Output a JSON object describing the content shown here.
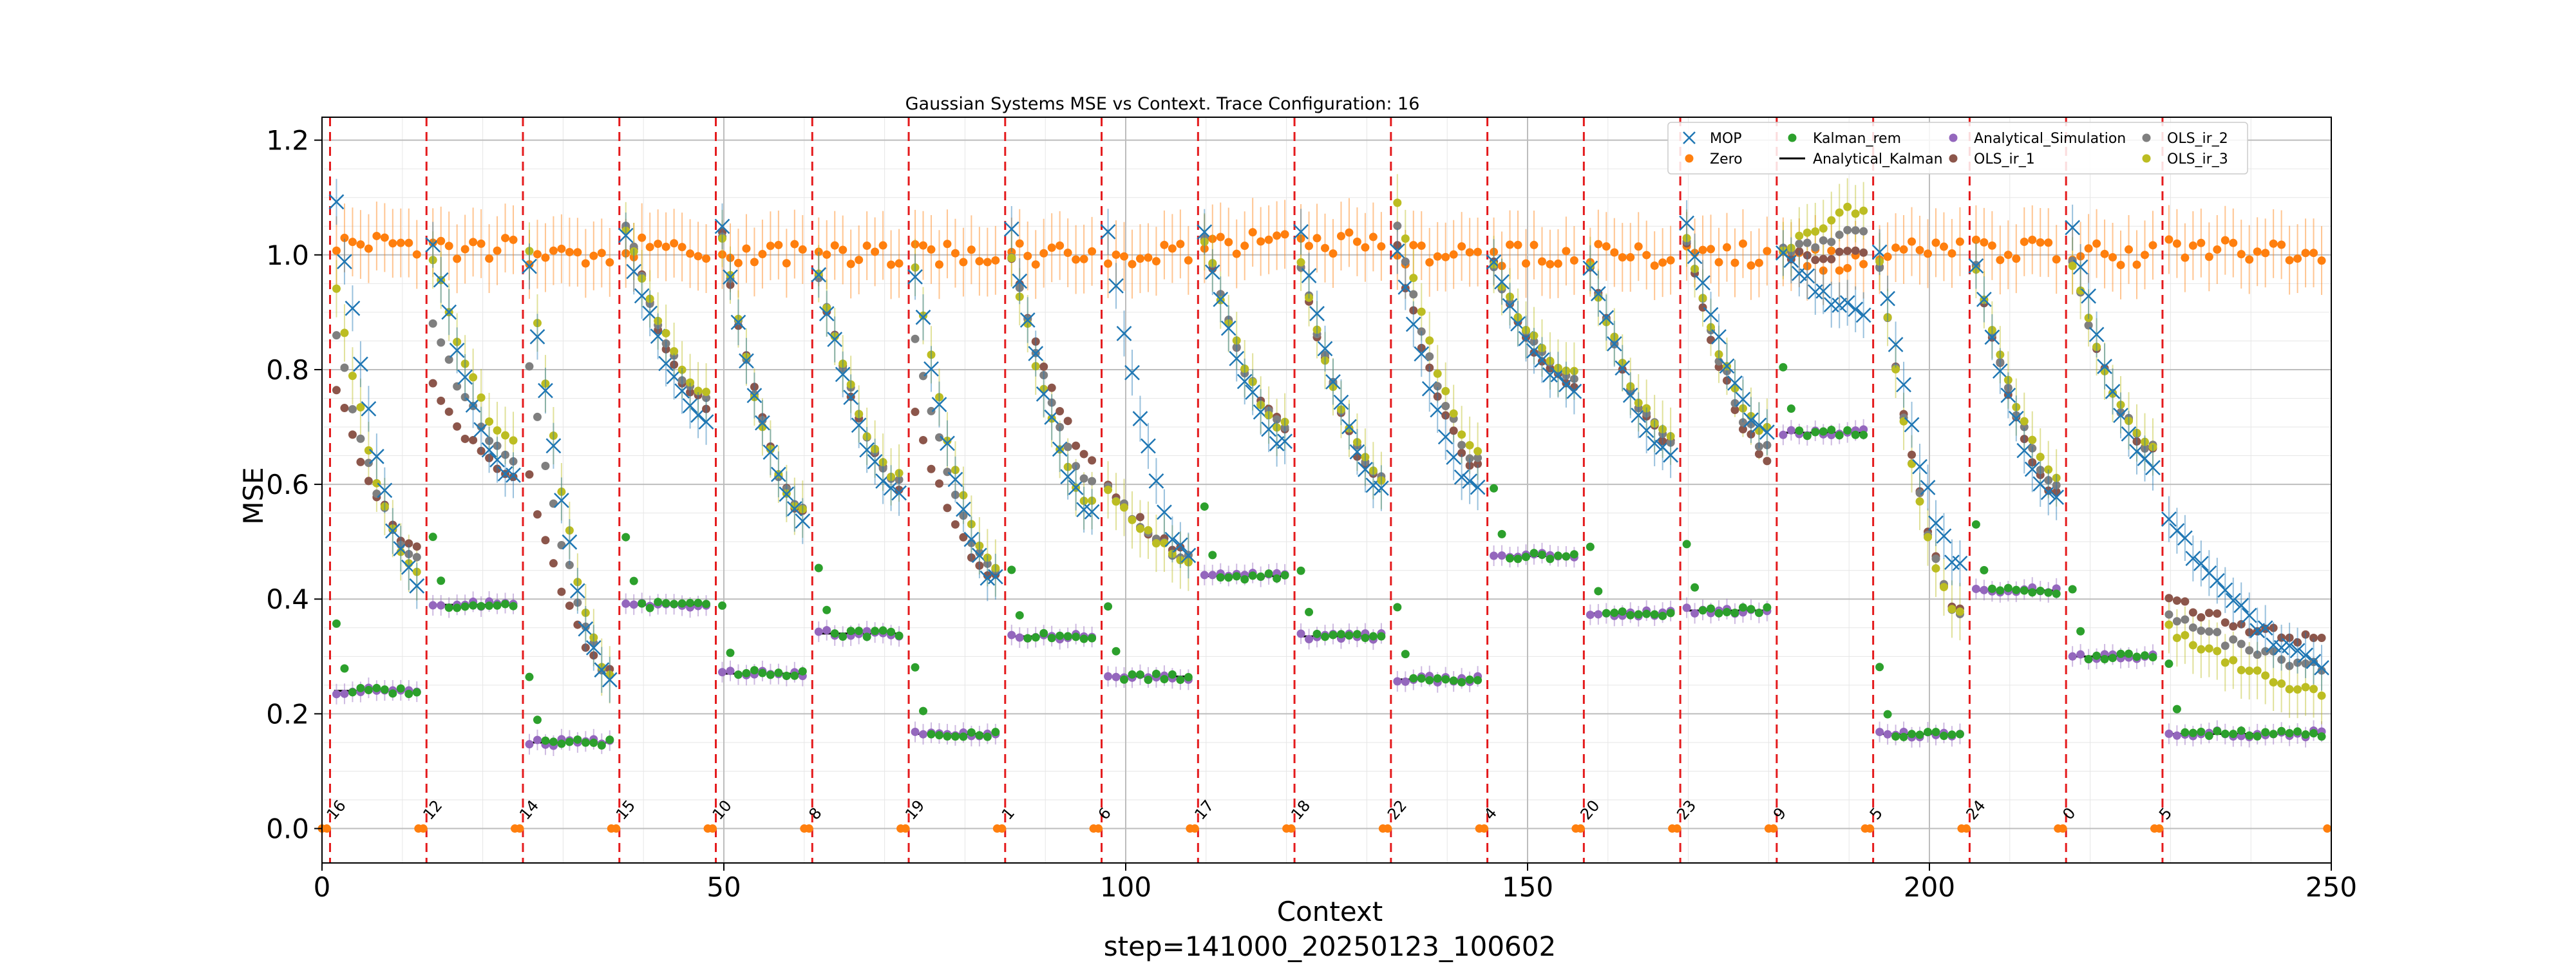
{
  "chart_data": {
    "type": "scatter",
    "title": "Gaussian Systems MSE vs Context. Trace Configuration: 16",
    "xlabel": "Context",
    "ylabel": "MSE",
    "footer": "step=141000_20250123_100602",
    "xlim": [
      0,
      250
    ],
    "ylim": [
      -0.06,
      1.24
    ],
    "xticks": [
      0,
      50,
      100,
      150,
      200,
      250
    ],
    "yticks": [
      0.0,
      0.2,
      0.4,
      0.6,
      0.8,
      1.0,
      1.2
    ],
    "grid": true,
    "legend_position": "top-right",
    "legend": [
      {
        "name": "MOP",
        "marker": "x",
        "color": "#1f77b4"
      },
      {
        "name": "Zero",
        "marker": "dot",
        "color": "#ff7f0e"
      },
      {
        "name": "Kalman_rem",
        "marker": "dot",
        "color": "#2ca02c"
      },
      {
        "name": "Analytical_Kalman",
        "marker": "line",
        "color": "#000000"
      },
      {
        "name": "Analytical_Simulation",
        "marker": "dot",
        "color": "#9467bd"
      },
      {
        "name": "OLS_ir_1",
        "marker": "dot",
        "color": "#8c564b"
      },
      {
        "name": "OLS_ir_2",
        "marker": "dot",
        "color": "#7f7f7f"
      },
      {
        "name": "OLS_ir_3",
        "marker": "dot",
        "color": "#bcbd22"
      }
    ],
    "segment_boundaries": [
      1,
      13,
      25,
      37,
      49,
      61,
      73,
      85,
      97,
      109,
      121,
      133,
      145,
      157,
      169,
      181,
      193,
      205,
      217,
      229
    ],
    "segments": [
      {
        "label": "16",
        "start": 1,
        "len": 11,
        "kalman": 0.24,
        "mop_start": 1.1,
        "mop_end": 0.43,
        "ols1_start": 0.77,
        "ols1_end": 0.49,
        "ols3_start": 0.95,
        "ols3_end": 0.44,
        "zero": 1.02
      },
      {
        "label": "12",
        "start": 13,
        "len": 11,
        "kalman": 0.39,
        "mop_start": 1.02,
        "mop_end": 0.61,
        "ols1_start": 0.77,
        "ols1_end": 0.62,
        "ols3_start": 1.0,
        "ols3_end": 0.67,
        "zero": 1.01
      },
      {
        "label": "14",
        "start": 25,
        "len": 11,
        "kalman": 0.15,
        "mop_start": 0.98,
        "mop_end": 0.25,
        "ols1_start": 0.61,
        "ols1_end": 0.27,
        "ols3_start": 1.0,
        "ols3_end": 0.27,
        "zero": 1.0
      },
      {
        "label": "15",
        "start": 37,
        "len": 11,
        "kalman": 0.39,
        "mop_start": 1.03,
        "mop_end": 0.71,
        "ols1_start": 1.05,
        "ols1_end": 0.74,
        "ols3_start": 1.05,
        "ols3_end": 0.76,
        "zero": 1.01
      },
      {
        "label": "10",
        "start": 49,
        "len": 11,
        "kalman": 0.27,
        "mop_start": 1.04,
        "mop_end": 0.54,
        "ols1_start": 1.03,
        "ols1_end": 0.55,
        "ols3_start": 1.03,
        "ols3_end": 0.55,
        "zero": 1.0
      },
      {
        "label": "8",
        "start": 61,
        "len": 11,
        "kalman": 0.34,
        "mop_start": 0.96,
        "mop_end": 0.58,
        "ols1_start": 0.96,
        "ols1_end": 0.6,
        "ols3_start": 0.96,
        "ols3_end": 0.61,
        "zero": 1.0
      },
      {
        "label": "19",
        "start": 73,
        "len": 11,
        "kalman": 0.165,
        "mop_start": 0.97,
        "mop_end": 0.43,
        "ols1_start": 0.72,
        "ols1_end": 0.44,
        "ols3_start": 0.98,
        "ols3_end": 0.45,
        "zero": 1.0
      },
      {
        "label": "1",
        "start": 85,
        "len": 11,
        "kalman": 0.335,
        "mop_start": 1.04,
        "mop_end": 0.55,
        "ols1_start": 1.0,
        "ols1_end": 0.65,
        "ols3_start": 1.0,
        "ols3_end": 0.57,
        "zero": 1.0
      },
      {
        "label": "6",
        "start": 97,
        "len": 11,
        "kalman": 0.265,
        "mop_start": 1.04,
        "mop_end": 0.47,
        "ols1_start": 0.6,
        "ols1_end": 0.48,
        "ols3_start": 0.6,
        "ols3_end": 0.47,
        "zero": 1.0
      },
      {
        "label": "17",
        "start": 109,
        "len": 11,
        "kalman": 0.44,
        "mop_start": 1.03,
        "mop_end": 0.67,
        "ols1_start": 1.03,
        "ols1_end": 0.7,
        "ols3_start": 1.03,
        "ols3_end": 0.7,
        "zero": 1.02
      },
      {
        "label": "18",
        "start": 121,
        "len": 11,
        "kalman": 0.335,
        "mop_start": 1.04,
        "mop_end": 0.59,
        "ols1_start": 0.98,
        "ols1_end": 0.6,
        "ols3_start": 0.98,
        "ols3_end": 0.61,
        "zero": 1.02
      },
      {
        "label": "22",
        "start": 133,
        "len": 11,
        "kalman": 0.26,
        "mop_start": 1.01,
        "mop_end": 0.59,
        "ols1_start": 1.01,
        "ols1_end": 0.63,
        "ols3_start": 1.09,
        "ols3_end": 0.66,
        "zero": 1.0
      },
      {
        "label": "4",
        "start": 145,
        "len": 11,
        "kalman": 0.475,
        "mop_start": 0.98,
        "mop_end": 0.77,
        "ols1_start": 0.98,
        "ols1_end": 0.77,
        "ols3_start": 0.98,
        "ols3_end": 0.79,
        "zero": 1.0
      },
      {
        "label": "20",
        "start": 157,
        "len": 11,
        "kalman": 0.375,
        "mop_start": 0.98,
        "mop_end": 0.65,
        "ols1_start": 0.98,
        "ols1_end": 0.67,
        "ols3_start": 0.98,
        "ols3_end": 0.68,
        "zero": 1.0
      },
      {
        "label": "23",
        "start": 169,
        "len": 11,
        "kalman": 0.38,
        "mop_start": 1.05,
        "mop_end": 0.69,
        "ols1_start": 1.02,
        "ols1_end": 0.65,
        "ols3_start": 1.02,
        "ols3_end": 0.69,
        "zero": 1.0
      },
      {
        "label": "9",
        "start": 181,
        "len": 11,
        "kalman": 0.69,
        "mop_start": 1.0,
        "mop_end": 0.9,
        "ols1_start": 1.0,
        "ols1_end": 1.0,
        "ols3_start": 1.0,
        "ols3_end": 1.08,
        "zero": 0.99
      },
      {
        "label": "5",
        "start": 193,
        "len": 11,
        "kalman": 0.165,
        "mop_start": 1.0,
        "mop_end": 0.46,
        "ols1_start": 0.98,
        "ols1_end": 0.38,
        "ols3_start": 0.98,
        "ols3_end": 0.37,
        "zero": 1.01
      },
      {
        "label": "24",
        "start": 205,
        "len": 11,
        "kalman": 0.415,
        "mop_start": 0.98,
        "mop_end": 0.57,
        "ols1_start": 0.98,
        "ols1_end": 0.58,
        "ols3_start": 0.98,
        "ols3_end": 0.62,
        "zero": 1.01
      },
      {
        "label": "0",
        "start": 217,
        "len": 11,
        "kalman": 0.3,
        "mop_start": 1.05,
        "mop_end": 0.63,
        "ols1_start": 0.98,
        "ols1_end": 0.66,
        "ols3_start": 0.98,
        "ols3_end": 0.66,
        "zero": 1.0
      },
      {
        "label": "5",
        "start": 229,
        "len": 20,
        "kalman": 0.165,
        "mop_start": 0.54,
        "mop_end": 0.29,
        "ols1_start": 0.4,
        "ols1_end": 0.33,
        "ols3_start": 0.35,
        "ols3_end": 0.24,
        "zero": 1.01
      }
    ],
    "zero_at_boundaries": 0.0
  }
}
